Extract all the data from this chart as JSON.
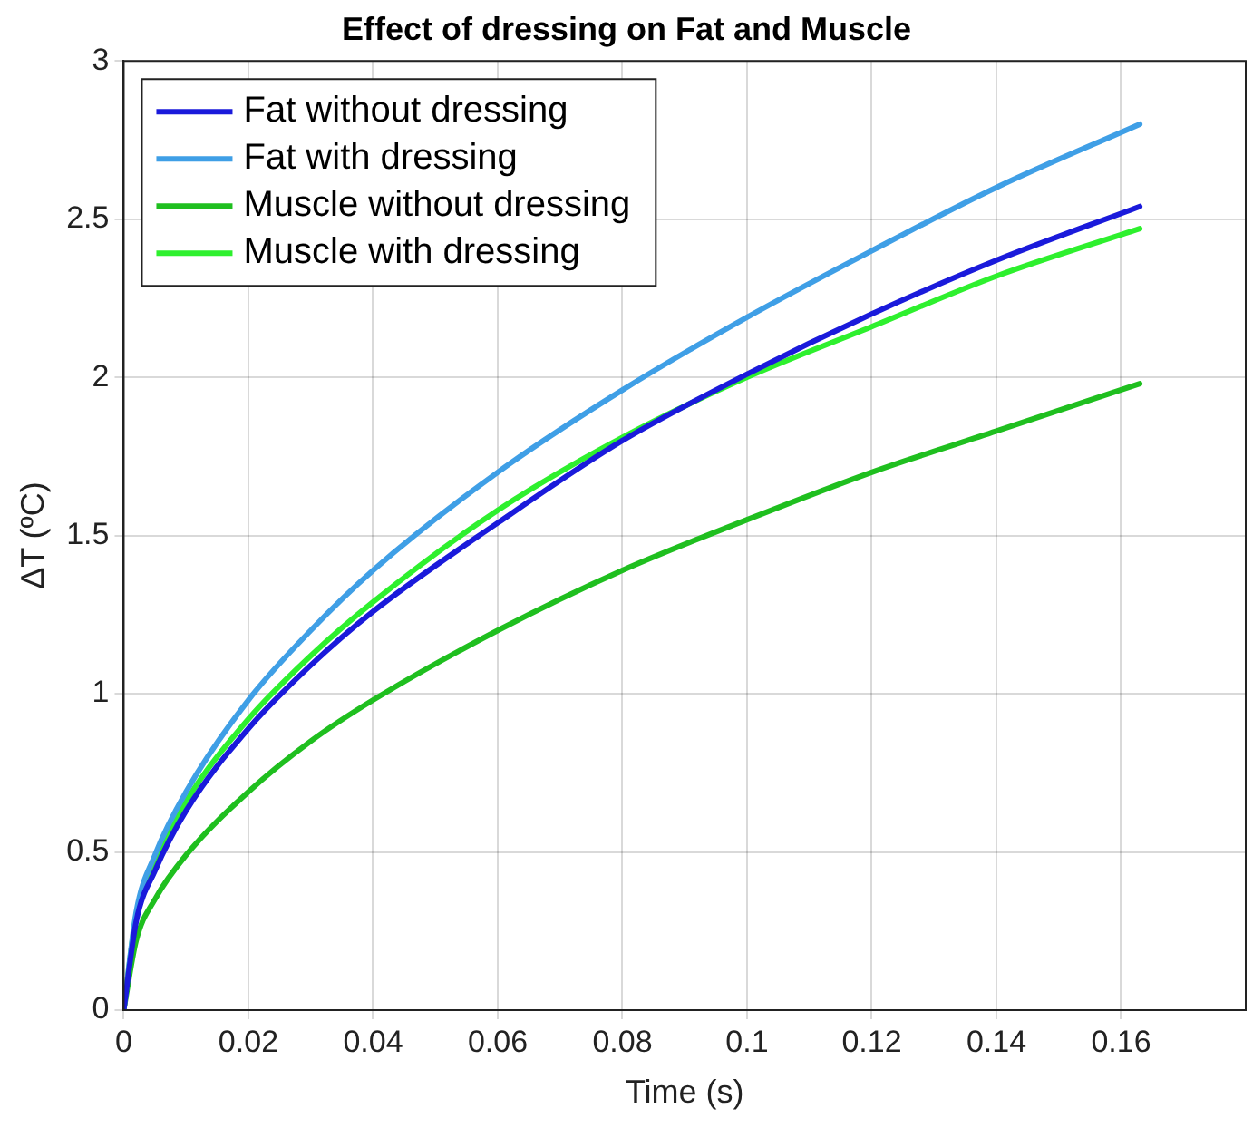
{
  "chart_data": {
    "type": "line",
    "title": "Effect of dressing on Fat and Muscle",
    "xlabel": "Time (s)",
    "ylabel": "ΔT (ºC)",
    "x": [
      0,
      0.002,
      0.005,
      0.01,
      0.02,
      0.03,
      0.04,
      0.06,
      0.08,
      0.1,
      0.12,
      0.14,
      0.163
    ],
    "series": [
      {
        "name": "Fat without dressing",
        "color": "#1a1adb",
        "values": [
          0,
          0.28,
          0.44,
          0.63,
          0.89,
          1.09,
          1.26,
          1.54,
          1.8,
          2.01,
          2.2,
          2.37,
          2.54
        ]
      },
      {
        "name": "Fat with dressing",
        "color": "#3f9fe6",
        "values": [
          0,
          0.31,
          0.49,
          0.69,
          0.98,
          1.2,
          1.39,
          1.7,
          1.96,
          2.19,
          2.4,
          2.6,
          2.8
        ]
      },
      {
        "name": "Muscle without dressing",
        "color": "#1fbf1f",
        "values": [
          0,
          0.22,
          0.35,
          0.49,
          0.69,
          0.85,
          0.98,
          1.2,
          1.39,
          1.55,
          1.7,
          1.83,
          1.98
        ]
      },
      {
        "name": "Muscle with dressing",
        "color": "#2ef02e",
        "values": [
          0,
          0.3,
          0.47,
          0.66,
          0.92,
          1.12,
          1.29,
          1.58,
          1.81,
          2,
          2.16,
          2.32,
          2.47
        ]
      }
    ],
    "xlim": [
      0,
      0.18
    ],
    "xticks": [
      0,
      0.02,
      0.04,
      0.06,
      0.08,
      0.1,
      0.12,
      0.14,
      0.16
    ],
    "ylim": [
      0,
      3
    ],
    "yticks": [
      0,
      0.5,
      1,
      1.5,
      2,
      2.5,
      3
    ],
    "grid": true,
    "legend": "top left",
    "marker": "none",
    "line_style": "solid"
  }
}
